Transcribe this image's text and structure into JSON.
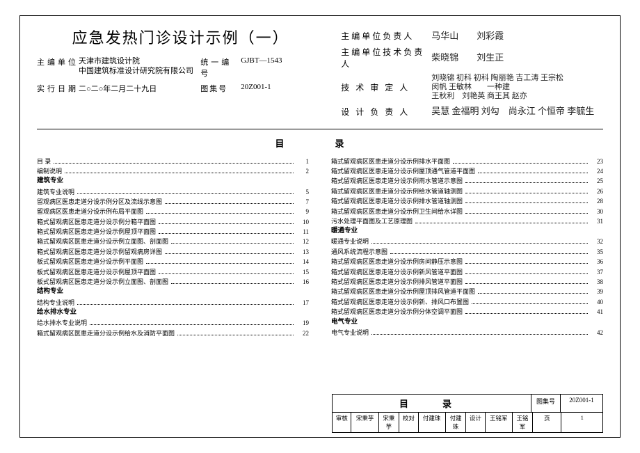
{
  "title": "应急发热门诊设计示例（一）",
  "meta": {
    "org_label": "主编单位",
    "org_val": "天津市建筑设计院\n中国建筑标准设计研究院有限公司",
    "code_label": "统一编号",
    "code_val": "GJBT—1543",
    "date_label": "实行日期",
    "date_val": "二○二○年二月二十九日",
    "atlas_label": "图集号",
    "atlas_val": "20Z001-1"
  },
  "sigs": {
    "r1_label": "主编单位负责人",
    "r1_val": "马华山　　刘彩霞",
    "r2_label": "主编单位技术负责人",
    "r2_val": "柴晓锦　　刘生正",
    "r3_label": "技 术 审 定 人",
    "r3_val": "刘晓锦 初科 初科 陶丽艳 吉工涛 王宗松\n闵帆 王敏林　　一种建\n王秋利　刘艳英 商王其 赵亦",
    "r4_label": "设 计 负 责 人",
    "r4_val": "吴慧 金福明 刘勾　尚永江 个恒帝 李毓生"
  },
  "toc_title": "目　录",
  "toc_left": [
    {
      "t": "目 录",
      "p": "1",
      "b": 0
    },
    {
      "t": "编制说明",
      "p": "2",
      "b": 0
    },
    {
      "t": "建筑专业",
      "p": "",
      "b": 1
    },
    {
      "t": "建筑专业说明",
      "p": "5",
      "b": 0
    },
    {
      "t": "留观病区医患走道分设示例分区及流线示意图",
      "p": "7",
      "b": 0
    },
    {
      "t": "留观病区医患走道分设示例布局平面图",
      "p": "9",
      "b": 0
    },
    {
      "t": "箱式留观病区医患走道分设示例分箱平面图",
      "p": "10",
      "b": 0
    },
    {
      "t": "箱式留观病区医患走道分设示例屋顶平面图",
      "p": "11",
      "b": 0
    },
    {
      "t": "箱式留观病区医患走道分设示例立面图、剖面图",
      "p": "12",
      "b": 0
    },
    {
      "t": "箱式留观病区医患走道分设示例留观病房详图",
      "p": "13",
      "b": 0
    },
    {
      "t": "板式留观病区医患走道分设示例平面图",
      "p": "14",
      "b": 0
    },
    {
      "t": "板式留观病区医患走道分设示例屋顶平面图",
      "p": "15",
      "b": 0
    },
    {
      "t": "板式留观病区医患走道分设示例立面图、剖面图",
      "p": "16",
      "b": 0
    },
    {
      "t": "结构专业",
      "p": "",
      "b": 1
    },
    {
      "t": "结构专业说明",
      "p": "17",
      "b": 0
    },
    {
      "t": "给水排水专业",
      "p": "",
      "b": 1
    },
    {
      "t": "给水排水专业说明",
      "p": "19",
      "b": 0
    },
    {
      "t": "箱式留观病区医患走道分设示例给水及消防平面图",
      "p": "22",
      "b": 0
    }
  ],
  "toc_right": [
    {
      "t": "箱式留观病区医患走道分设示例排水平面图",
      "p": "23",
      "b": 0
    },
    {
      "t": "箱式留观病区医患走道分设示例屋顶通气管道平面图",
      "p": "24",
      "b": 0
    },
    {
      "t": "箱式留观病区医患走道分设示例雨水管道示意图",
      "p": "25",
      "b": 0
    },
    {
      "t": "箱式留观病区医患走道分设示例给水管道轴测图",
      "p": "26",
      "b": 0
    },
    {
      "t": "箱式留观病区医患走道分设示例排水管道轴测图",
      "p": "28",
      "b": 0
    },
    {
      "t": "箱式留观病区医患走道分设示例卫生间给水详图",
      "p": "30",
      "b": 0
    },
    {
      "t": "污水处理平面图及工艺原理图",
      "p": "31",
      "b": 0
    },
    {
      "t": "暖通专业",
      "p": "",
      "b": 1
    },
    {
      "t": "暖通专业说明",
      "p": "32",
      "b": 0
    },
    {
      "t": "通风系统流程示意图",
      "p": "35",
      "b": 0
    },
    {
      "t": "箱式留观病区医患走道分设示例房间静压示意图",
      "p": "36",
      "b": 0
    },
    {
      "t": "箱式留观病区医患走道分设示例新风管道平面图",
      "p": "37",
      "b": 0
    },
    {
      "t": "箱式留观病区医患走道分设示例排风管道平面图",
      "p": "38",
      "b": 0
    },
    {
      "t": "箱式留观病区医患走道分设示例屋顶排风管道平面图",
      "p": "39",
      "b": 0
    },
    {
      "t": "箱式留观病区医患走道分设示例新、排风口布置图",
      "p": "40",
      "b": 0
    },
    {
      "t": "箱式留观病区医患走道分设示例分体空调平面图",
      "p": "41",
      "b": 0
    },
    {
      "t": "电气专业",
      "p": "",
      "b": 1
    },
    {
      "t": "电气专业说明",
      "p": "42",
      "b": 0
    }
  ],
  "footer": {
    "mulu": "目　录",
    "atlas_l": "图集号",
    "atlas_v": "20Z001-1",
    "审核l": "审核",
    "审核v": "宋秉芋",
    "审核s": "宋秉芋",
    "校对l": "校对",
    "校对v": "付建珠",
    "校对s": "付建珠",
    "设计l": "设计",
    "设计v": "王铭军",
    "设计s": "王铭军",
    "页l": "页",
    "页v": "1"
  }
}
